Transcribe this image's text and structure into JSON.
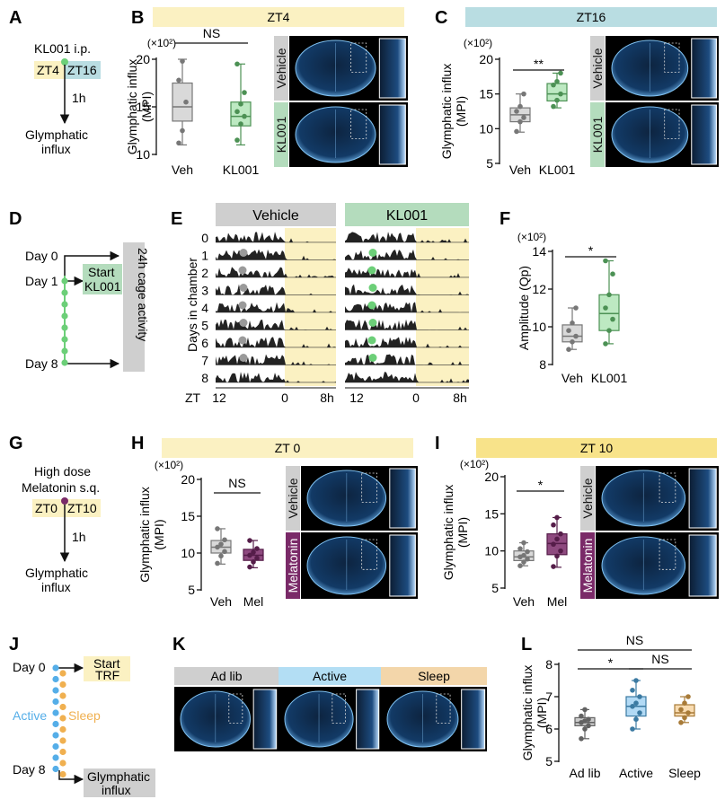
{
  "panel_letters": [
    "A",
    "B",
    "C",
    "D",
    "E",
    "F",
    "G",
    "H",
    "I",
    "J",
    "K",
    "L"
  ],
  "colors": {
    "veh": "#aaaaaa",
    "kl": "#6ccf78",
    "mel": "#7a2a68",
    "adlib": "#8c8c8c",
    "active": "#55aee8",
    "sleep": "#f0b050",
    "yellow": "#fbf1c2",
    "teal": "#b9dde2",
    "klbar": "#b4dcbd",
    "grey": "#cfcfcf",
    "active_bar": "#b3def4",
    "sleep_bar": "#f3d6aa"
  },
  "A": {
    "title": "KL001 i.p.",
    "zt_left": "ZT4",
    "zt_right": "ZT16",
    "delay": "1h",
    "outcome_line1": "Glymphatic",
    "outcome_line2": "influx"
  },
  "G": {
    "title_line1": "High dose",
    "title_line2": "Melatonin s.q.",
    "zt_left": "ZT0",
    "zt_right": "ZT10",
    "delay": "1h",
    "outcome_line1": "Glymphatic",
    "outcome_line2": "influx"
  },
  "D": {
    "day0": "Day 0",
    "day1": "Day 1",
    "day8": "Day 8",
    "start_line1": "Start",
    "start_line2": "KL001",
    "side": "24h cage activity"
  },
  "J": {
    "day0": "Day 0",
    "day8": "Day 8",
    "start_line1": "Start",
    "start_line2": "TRF",
    "active": "Active",
    "sleep": "Sleep",
    "end_line1": "Glymphatic",
    "end_line2": "influx"
  },
  "E": {
    "header_left": "Vehicle",
    "header_right": "KL001",
    "ylabel": "Days in chamber",
    "days": [
      "0",
      "1",
      "2",
      "3",
      "4",
      "5",
      "6",
      "7",
      "8"
    ],
    "xprefix": "ZT",
    "xticks_left": [
      "12",
      "0",
      "8h"
    ],
    "xticks_right": [
      "12",
      "0",
      "8h"
    ]
  },
  "K": {
    "labels": [
      "Ad lib",
      "Active",
      "Sleep"
    ]
  },
  "img_labels": {
    "vehicle": "Vehicle",
    "kl001": "KL001",
    "melatonin": "Melatonin"
  },
  "chart_data": [
    {
      "id": "B",
      "type": "box",
      "header": "ZT4",
      "ylabel_line1": "Glymphatic influx",
      "ylabel_line2": "(MPI)",
      "multiplier": "(×10²)",
      "yticks": [
        "20",
        "15",
        "10"
      ],
      "ylim": [
        10,
        20
      ],
      "significance": "NS",
      "categories": [
        "Veh",
        "KL001"
      ],
      "series": [
        {
          "name": "Veh",
          "min": 11,
          "q1": 13.5,
          "median": 15,
          "q3": 17.5,
          "max": 20,
          "points": [
            11.2,
            12.5,
            15.5,
            17.8,
            19.8
          ]
        },
        {
          "name": "KL001",
          "min": 11,
          "q1": 13,
          "median": 14,
          "q3": 15.5,
          "max": 19.5,
          "points": [
            11.5,
            13.2,
            14,
            14.5,
            15.3,
            16.5,
            19.5
          ]
        }
      ]
    },
    {
      "id": "C",
      "type": "box",
      "header": "ZT16",
      "ylabel_line1": "Glymphatic influx",
      "ylabel_line2": "(MPI)",
      "multiplier": "(×10²)",
      "yticks": [
        "20",
        "15",
        "10",
        "5"
      ],
      "ylim": [
        5,
        20
      ],
      "significance": "**",
      "categories": [
        "Veh",
        "KL001"
      ],
      "series": [
        {
          "name": "Veh",
          "min": 9.5,
          "q1": 11,
          "median": 12,
          "q3": 13,
          "max": 15,
          "points": [
            9.6,
            11,
            11.6,
            12.5,
            13.2,
            15
          ]
        },
        {
          "name": "KL001",
          "min": 13,
          "q1": 14,
          "median": 15,
          "q3": 16.5,
          "max": 18,
          "points": [
            13.2,
            14.1,
            15,
            16.3,
            16.8,
            18
          ]
        }
      ]
    },
    {
      "id": "F",
      "type": "box",
      "header": "",
      "ylabel_line1": "Amplitude (Qp)",
      "ylabel_line2": "",
      "multiplier": "(×10²)",
      "yticks": [
        "14",
        "12",
        "10",
        "8"
      ],
      "ylim": [
        8,
        14
      ],
      "significance": "*",
      "categories": [
        "Veh",
        "KL001"
      ],
      "series": [
        {
          "name": "Veh",
          "min": 8.8,
          "q1": 9.2,
          "median": 9.5,
          "q3": 10.1,
          "max": 11,
          "points": [
            8.8,
            9.2,
            9.5,
            9.8,
            10.2,
            11
          ]
        },
        {
          "name": "KL001",
          "min": 9.1,
          "q1": 9.8,
          "median": 10.7,
          "q3": 11.7,
          "max": 13.5,
          "points": [
            9.1,
            9.8,
            10.4,
            11,
            11.7,
            12.8,
            13.5
          ]
        }
      ]
    },
    {
      "id": "H",
      "type": "box",
      "header": "ZT 0",
      "ylabel_line1": "Glymphatic influx",
      "ylabel_line2": "(MPI)",
      "multiplier": "(×10²)",
      "yticks": [
        "20",
        "15",
        "10",
        "5"
      ],
      "ylim": [
        5,
        20
      ],
      "significance": "NS",
      "categories": [
        "Veh",
        "Mel"
      ],
      "series": [
        {
          "name": "Veh",
          "min": 8.5,
          "q1": 10,
          "median": 10.8,
          "q3": 11.7,
          "max": 13.3,
          "points": [
            8.6,
            9.6,
            10.2,
            10.8,
            11.2,
            11.8,
            13.3
          ]
        },
        {
          "name": "Mel",
          "min": 8,
          "q1": 9,
          "median": 9.7,
          "q3": 10.5,
          "max": 11.7,
          "points": [
            8.1,
            8.8,
            9.3,
            9.7,
            10.1,
            10.6,
            11.7
          ]
        }
      ]
    },
    {
      "id": "I",
      "type": "box",
      "header": "ZT 10",
      "ylabel_line1": "Glymphatic influx",
      "ylabel_line2": "(MPI)",
      "multiplier": "(×10²)",
      "yticks": [
        "20",
        "15",
        "10",
        "5"
      ],
      "ylim": [
        5,
        20
      ],
      "significance": "*",
      "categories": [
        "Veh",
        "Mel"
      ],
      "series": [
        {
          "name": "Veh",
          "min": 8,
          "q1": 8.7,
          "median": 9.2,
          "q3": 10,
          "max": 11.1,
          "points": [
            8,
            8.5,
            8.9,
            9.2,
            9.4,
            9.9,
            10.3,
            11.1
          ]
        },
        {
          "name": "Mel",
          "min": 7.8,
          "q1": 9.5,
          "median": 11,
          "q3": 12.3,
          "max": 14.5,
          "points": [
            7.9,
            9.3,
            10,
            10.9,
            11.6,
            12.3,
            13.5,
            14.5
          ]
        }
      ]
    },
    {
      "id": "L",
      "type": "box",
      "header": "",
      "ylabel_line1": "Glymphatic influx",
      "ylabel_line2": "(MPI)",
      "multiplier": "",
      "yticks": [
        "8",
        "7",
        "6",
        "5"
      ],
      "ylim": [
        5,
        8
      ],
      "significance": [
        "*",
        "NS",
        "NS"
      ],
      "categories": [
        "Ad lib",
        "Active",
        "Sleep"
      ],
      "series": [
        {
          "name": "Ad lib",
          "min": 5.7,
          "q1": 6.1,
          "median": 6.2,
          "q3": 6.35,
          "max": 6.6,
          "points": [
            5.7,
            6,
            6.1,
            6.2,
            6.25,
            6.3,
            6.4,
            6.6
          ]
        },
        {
          "name": "Active",
          "min": 6,
          "q1": 6.4,
          "median": 6.7,
          "q3": 7,
          "max": 7.5,
          "points": [
            6,
            6.3,
            6.5,
            6.7,
            6.8,
            7,
            7.2,
            7.5
          ]
        },
        {
          "name": "Sleep",
          "min": 6.2,
          "q1": 6.4,
          "median": 6.5,
          "q3": 6.75,
          "max": 7,
          "points": [
            6.2,
            6.35,
            6.5,
            6.6,
            6.8,
            7
          ]
        }
      ]
    }
  ]
}
